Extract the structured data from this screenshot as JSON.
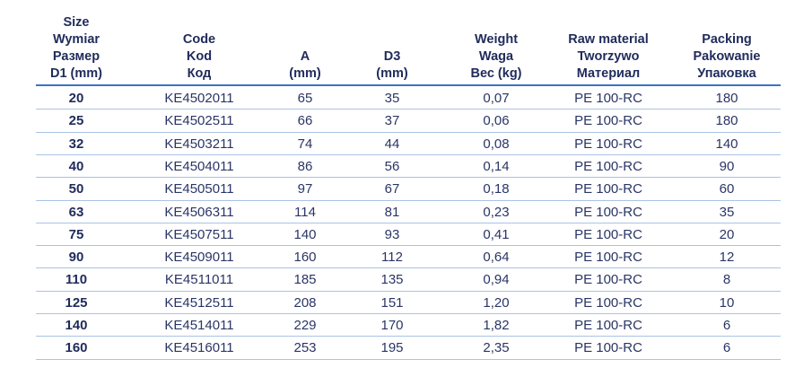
{
  "table": {
    "header": [
      [
        "Size",
        "Wymiar",
        "Размер",
        "D1 (mm)"
      ],
      [
        "Code",
        "Kod",
        "Код"
      ],
      [
        "A",
        "(mm)"
      ],
      [
        "D3",
        "(mm)"
      ],
      [
        "Weight",
        "Waga",
        "Вес (kg)"
      ],
      [
        "Raw material",
        "Tworzywo",
        "Материал"
      ],
      [
        "Packing",
        "Pakowanie",
        "Упаковка"
      ]
    ],
    "rows": [
      [
        "20",
        "KE4502011",
        "65",
        "35",
        "0,07",
        "PE 100-RC",
        "180"
      ],
      [
        "25",
        "KE4502511",
        "66",
        "37",
        "0,06",
        "PE 100-RC",
        "180"
      ],
      [
        "32",
        "KE4503211",
        "74",
        "44",
        "0,08",
        "PE 100-RC",
        "140"
      ],
      [
        "40",
        "KE4504011",
        "86",
        "56",
        "0,14",
        "PE 100-RC",
        "90"
      ],
      [
        "50",
        "KE4505011",
        "97",
        "67",
        "0,18",
        "PE 100-RC",
        "60"
      ],
      [
        "63",
        "KE4506311",
        "114",
        "81",
        "0,23",
        "PE 100-RC",
        "35"
      ],
      [
        "75",
        "KE4507511",
        "140",
        "93",
        "0,41",
        "PE 100-RC",
        "20"
      ],
      [
        "90",
        "KE4509011",
        "160",
        "112",
        "0,64",
        "PE 100-RC",
        "12"
      ],
      [
        "110",
        "KE4511011",
        "185",
        "135",
        "0,94",
        "PE 100-RC",
        "8"
      ],
      [
        "125",
        "KE4512511",
        "208",
        "151",
        "1,20",
        "PE 100-RC",
        "10"
      ],
      [
        "140",
        "KE4514011",
        "229",
        "170",
        "1,82",
        "PE 100-RC",
        "6"
      ],
      [
        "160",
        "KE4516011",
        "253",
        "195",
        "2,35",
        "PE 100-RC",
        "6"
      ]
    ]
  }
}
